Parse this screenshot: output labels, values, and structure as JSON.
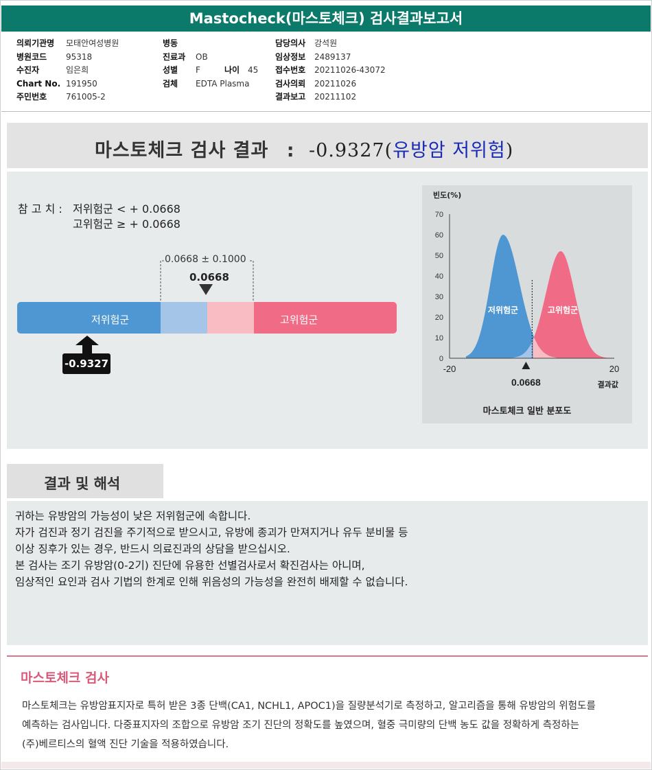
{
  "title": "Mastocheck(마스토체크) 검사결과보고서",
  "info": {
    "col1": [
      {
        "key": "의뢰기관명",
        "value": "모태안여성병원"
      },
      {
        "key": "병원코드",
        "value": "95318"
      },
      {
        "key": "수진자",
        "value": "임은희"
      },
      {
        "key": "Chart No.",
        "value": "191950"
      },
      {
        "key": "주민번호",
        "value": "761005-2"
      }
    ],
    "col2": [
      {
        "key": "병동",
        "value": ""
      },
      {
        "key": "진료과",
        "value": "OB"
      },
      {
        "key": "성별",
        "value": "F"
      },
      {
        "key": "검체",
        "value": "EDTA Plasma"
      }
    ],
    "age": {
      "key": "나이",
      "value": "45"
    },
    "col3": [
      {
        "key": "담당의사",
        "value": "강석원"
      },
      {
        "key": "임상정보",
        "value": "2489137"
      },
      {
        "key": "접수번호",
        "value": "20211026-43072"
      },
      {
        "key": "검사의뢰",
        "value": "20211026"
      },
      {
        "key": "결과보고",
        "value": "20211102"
      }
    ]
  },
  "result": {
    "label": "마스토체크 검사 결과",
    "colon": ":",
    "value": "-0.9327",
    "open": "(",
    "risk": "유방암 저위험",
    "close": ")"
  },
  "reference": {
    "heading": "참 고 치 :",
    "low": "저위험군 < + 0.0668",
    "high": "고위험군 ≥ + 0.0668"
  },
  "scale": {
    "range_label": "0.0668 ± 0.1000",
    "cutoff_label": "0.0668",
    "low_label": "저위험군",
    "high_label": "고위험군",
    "patient_value": "-0.9327",
    "colors": {
      "low": "#4f97d2",
      "low_light": "#a4c4e8",
      "high_light": "#f9bcc3",
      "high": "#f06b85"
    }
  },
  "chart_data": {
    "type": "area",
    "title": "마스토체크 일반 분포도",
    "ylabel": "빈도(%)",
    "xlabel": "결과값",
    "xlim": [
      -20,
      20
    ],
    "ylim": [
      0,
      70
    ],
    "yticks": [
      "0",
      "10",
      "20",
      "30",
      "40",
      "50",
      "60",
      "70"
    ],
    "xticks": [
      "-20",
      "20"
    ],
    "cutoff": 0.0668,
    "cutoff_label": "0.0668",
    "series": [
      {
        "name": "저위험군",
        "peak_x": -7,
        "peak_y": 60,
        "color": "#4f97d2"
      },
      {
        "name": "고위험군",
        "peak_x": 7,
        "peak_y": 52,
        "color": "#f06b85"
      }
    ]
  },
  "interpretation": {
    "heading": "결과 및 해석",
    "lines": [
      "귀하는 유방암의 가능성이 낮은 저위험군에 속합니다.",
      "자가 검진과 정기 검진을 주기적으로 받으시고, 유방에 종괴가 만져지거나 유두 분비물 등",
      "이상 징후가 있는 경우, 반드시 의료진과의 상담을 받으십시오.",
      "본 검사는 조기 유방암(0-2기) 진단에 유용한 선별검사로서 확진검사는 아니며,",
      "임상적인 요인과 검사 기법의 한계로 인해 위음성의 가능성을 완전히 배제할 수 없습니다."
    ]
  },
  "about": {
    "heading": "마스토체크 검사",
    "lines": [
      "마스토체크는 유방암표지자로 특허 받은 3종 단백(CA1, NCHL1, APOC1)을 질량분석기로 측정하고, 알고리즘을 통해 유방암의 위험도를",
      "예측하는 검사입니다. 다중표지자의 조합으로 유방암 조기 진단의 정확도를 높였으며, 혈중 극미량의 단백 농도 값을 정확하게 측정하는",
      "(주)베르티스의 혈액 진단 기술을 적용하였습니다."
    ]
  }
}
